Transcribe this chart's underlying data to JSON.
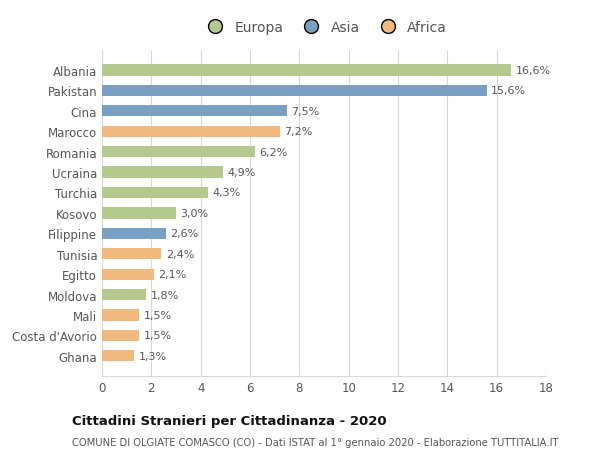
{
  "countries": [
    "Albania",
    "Pakistan",
    "Cina",
    "Marocco",
    "Romania",
    "Ucraina",
    "Turchia",
    "Kosovo",
    "Filippine",
    "Tunisia",
    "Egitto",
    "Moldova",
    "Mali",
    "Costa d'Avorio",
    "Ghana"
  ],
  "values": [
    16.6,
    15.6,
    7.5,
    7.2,
    6.2,
    4.9,
    4.3,
    3.0,
    2.6,
    2.4,
    2.1,
    1.8,
    1.5,
    1.5,
    1.3
  ],
  "labels": [
    "16,6%",
    "15,6%",
    "7,5%",
    "7,2%",
    "6,2%",
    "4,9%",
    "4,3%",
    "3,0%",
    "2,6%",
    "2,4%",
    "2,1%",
    "1,8%",
    "1,5%",
    "1,5%",
    "1,3%"
  ],
  "continents": [
    "Europa",
    "Asia",
    "Asia",
    "Africa",
    "Europa",
    "Europa",
    "Europa",
    "Europa",
    "Asia",
    "Africa",
    "Africa",
    "Europa",
    "Africa",
    "Africa",
    "Africa"
  ],
  "colors": {
    "Europa": "#b5c98e",
    "Asia": "#7a9fc2",
    "Africa": "#f0b97e"
  },
  "xlim": [
    0,
    18
  ],
  "xticks": [
    0,
    2,
    4,
    6,
    8,
    10,
    12,
    14,
    16,
    18
  ],
  "title": "Cittadini Stranieri per Cittadinanza - 2020",
  "subtitle": "COMUNE DI OLGIATE COMASCO (CO) - Dati ISTAT al 1° gennaio 2020 - Elaborazione TUTTITALIA.IT",
  "background_color": "#ffffff",
  "grid_color": "#d8d8d8"
}
